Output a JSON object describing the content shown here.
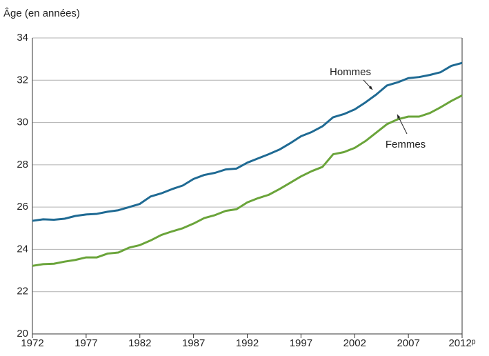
{
  "chart_data": {
    "type": "line",
    "y_label": "Âge (en années)",
    "x": [
      1972,
      1973,
      1974,
      1975,
      1976,
      1977,
      1978,
      1979,
      1980,
      1981,
      1982,
      1983,
      1984,
      1985,
      1986,
      1987,
      1988,
      1989,
      1990,
      1991,
      1992,
      1993,
      1994,
      1995,
      1996,
      1997,
      1998,
      1999,
      2000,
      2001,
      2002,
      2003,
      2004,
      2005,
      2006,
      2007,
      2008,
      2009,
      2010,
      2011,
      2012
    ],
    "series": [
      {
        "name": "Hommes",
        "color": "#1f6a93",
        "values": [
          25.35,
          25.42,
          25.4,
          25.45,
          25.58,
          25.65,
          25.68,
          25.78,
          25.85,
          26.0,
          26.15,
          26.5,
          26.65,
          26.85,
          27.02,
          27.33,
          27.52,
          27.62,
          27.78,
          27.82,
          28.1,
          28.3,
          28.5,
          28.72,
          29.02,
          29.35,
          29.55,
          29.82,
          30.25,
          30.4,
          30.62,
          30.95,
          31.32,
          31.75,
          31.9,
          32.1,
          32.15,
          32.25,
          32.38,
          32.68,
          32.82
        ]
      },
      {
        "name": "Femmes",
        "color": "#6aa43a",
        "values": [
          23.22,
          23.3,
          23.32,
          23.42,
          23.5,
          23.62,
          23.62,
          23.8,
          23.85,
          24.08,
          24.2,
          24.42,
          24.68,
          24.85,
          25.0,
          25.22,
          25.48,
          25.62,
          25.82,
          25.9,
          26.22,
          26.42,
          26.58,
          26.85,
          27.15,
          27.45,
          27.7,
          27.9,
          28.5,
          28.6,
          28.8,
          29.12,
          29.52,
          29.92,
          30.15,
          30.28,
          30.28,
          30.45,
          30.72,
          31.02,
          31.28
        ]
      }
    ],
    "xlim": [
      1972,
      2012
    ],
    "xticks": [
      1972,
      1977,
      1982,
      1987,
      1992,
      1997,
      2002,
      2007,
      {
        "value": 2012,
        "label": "2012ᵖ"
      }
    ],
    "ylim": [
      20,
      34
    ],
    "yticks": [
      20,
      22,
      24,
      26,
      28,
      30,
      32,
      34
    ],
    "grid": true,
    "legend": "inline"
  }
}
